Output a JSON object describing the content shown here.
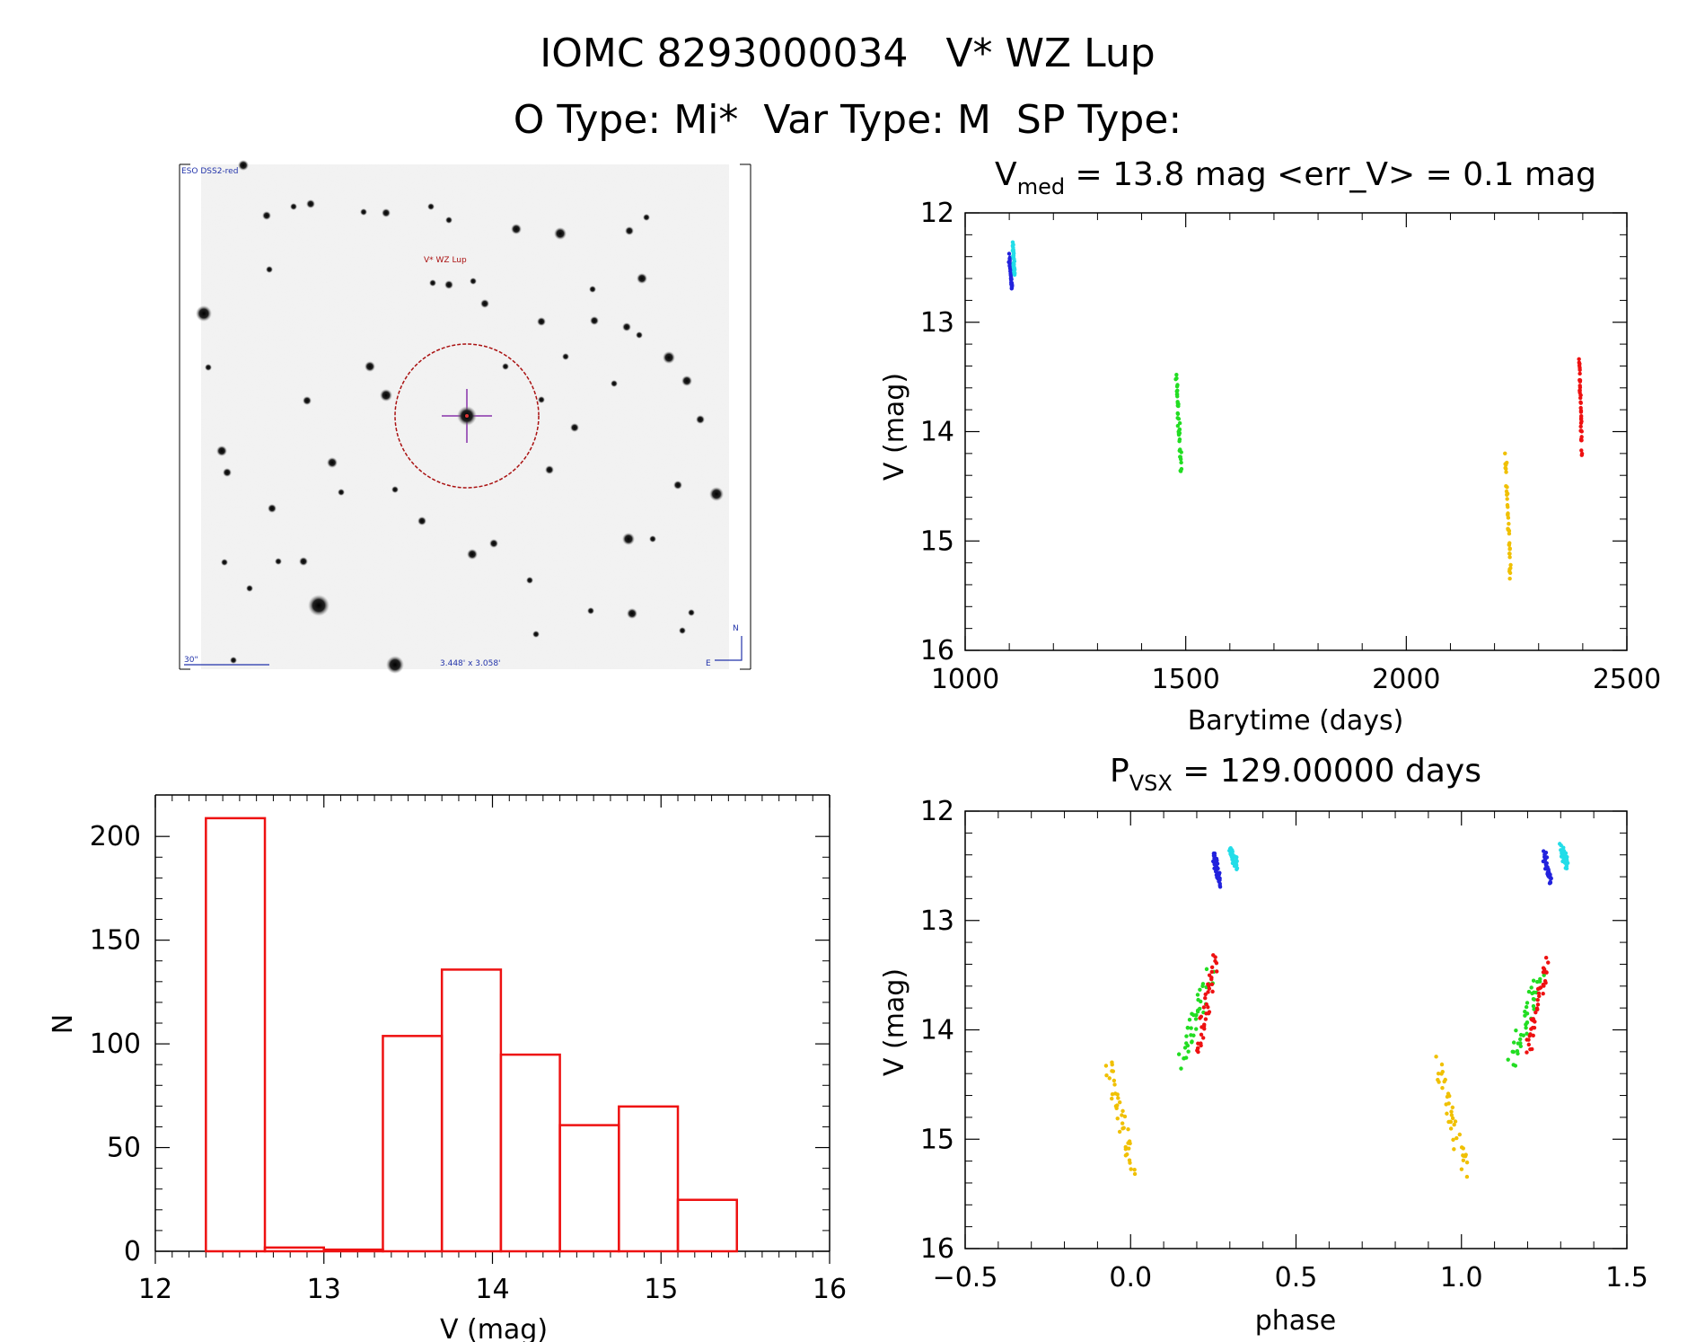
{
  "header": {
    "line1": "IOMC 8293000034   V* WZ Lup",
    "line2": "O Type: Mi*  Var Type: M  SP Type:"
  },
  "finder": {
    "survey": "ESO DSS2-red",
    "target": "V* WZ Lup",
    "scale": "30\"",
    "size": "3.448' x 3.058'",
    "north": "N",
    "east": "E"
  },
  "chart_data": [
    {
      "id": "lightcurve",
      "type": "scatter",
      "title_main": "V",
      "title_sub": "med",
      "title_rest": " = 13.8 mag <err_V> = 0.1 mag",
      "xlabel": "Barytime (days)",
      "ylabel": "V (mag)",
      "xlim": [
        1000,
        2500
      ],
      "ylim": [
        12,
        16
      ],
      "y_inverted": true,
      "xticks": [
        "1000",
        "1500",
        "2000",
        "2500"
      ],
      "yticks": [
        "12",
        "13",
        "14",
        "15",
        "16"
      ],
      "segments": [
        {
          "color": "#2222dd",
          "x": [
            1100,
            1106
          ],
          "y": [
            12.4,
            12.7
          ]
        },
        {
          "color": "#22dde8",
          "x": [
            1108,
            1112
          ],
          "y": [
            12.3,
            12.55
          ]
        },
        {
          "color": "#22dd22",
          "x": [
            1478,
            1490
          ],
          "y": [
            13.5,
            14.35
          ]
        },
        {
          "color": "#f0c000",
          "x": [
            2225,
            2236
          ],
          "y": [
            14.25,
            15.35
          ]
        },
        {
          "color": "#ee1111",
          "x": [
            2392,
            2398
          ],
          "y": [
            13.35,
            14.2
          ]
        }
      ]
    },
    {
      "id": "histogram",
      "type": "bar",
      "xlabel": "V (mag)",
      "ylabel": "N",
      "xlim": [
        12,
        16
      ],
      "ylim": [
        0,
        220
      ],
      "xticks": [
        "12",
        "13",
        "14",
        "15",
        "16"
      ],
      "yticks": [
        "0",
        "50",
        "100",
        "150",
        "200"
      ],
      "bin_edges": [
        12.3,
        12.65,
        13.0,
        13.35,
        13.7,
        14.05,
        14.4,
        14.75,
        15.1,
        15.45
      ],
      "values": [
        208,
        1,
        0,
        103,
        135,
        94,
        60,
        69,
        24
      ]
    },
    {
      "id": "phased",
      "type": "scatter",
      "title_main": "P",
      "title_sub": "VSX",
      "title_rest": " = 129.00000 days",
      "xlabel": "phase",
      "ylabel": "V (mag)",
      "xlim": [
        -0.5,
        1.5
      ],
      "ylim": [
        12,
        16
      ],
      "y_inverted": true,
      "xticks": [
        "−0.5",
        "0.0",
        "0.5",
        "1.0",
        "1.5"
      ],
      "yticks": [
        "12",
        "13",
        "14",
        "15",
        "16"
      ],
      "segments": [
        {
          "color": "#2222dd",
          "x": [
            0.25,
            0.27
          ],
          "y": [
            12.4,
            12.65
          ]
        },
        {
          "color": "#22dde8",
          "x": [
            0.3,
            0.32
          ],
          "y": [
            12.35,
            12.5
          ]
        },
        {
          "color": "#22dd22",
          "x": [
            0.15,
            0.24
          ],
          "y": [
            14.3,
            13.5
          ]
        },
        {
          "color": "#f0c000",
          "x": [
            -0.07,
            0.01
          ],
          "y": [
            14.3,
            15.3
          ]
        },
        {
          "color": "#ee1111",
          "x": [
            0.2,
            0.26
          ],
          "y": [
            14.2,
            13.35
          ]
        },
        {
          "color": "#2222dd",
          "x": [
            1.25,
            1.27
          ],
          "y": [
            12.4,
            12.65
          ]
        },
        {
          "color": "#22dde8",
          "x": [
            1.3,
            1.32
          ],
          "y": [
            12.35,
            12.5
          ]
        },
        {
          "color": "#22dd22",
          "x": [
            1.15,
            1.24
          ],
          "y": [
            14.3,
            13.5
          ]
        },
        {
          "color": "#f0c000",
          "x": [
            0.93,
            1.01
          ],
          "y": [
            14.3,
            15.3
          ]
        },
        {
          "color": "#ee1111",
          "x": [
            1.2,
            1.26
          ],
          "y": [
            14.2,
            13.35
          ]
        }
      ]
    }
  ]
}
